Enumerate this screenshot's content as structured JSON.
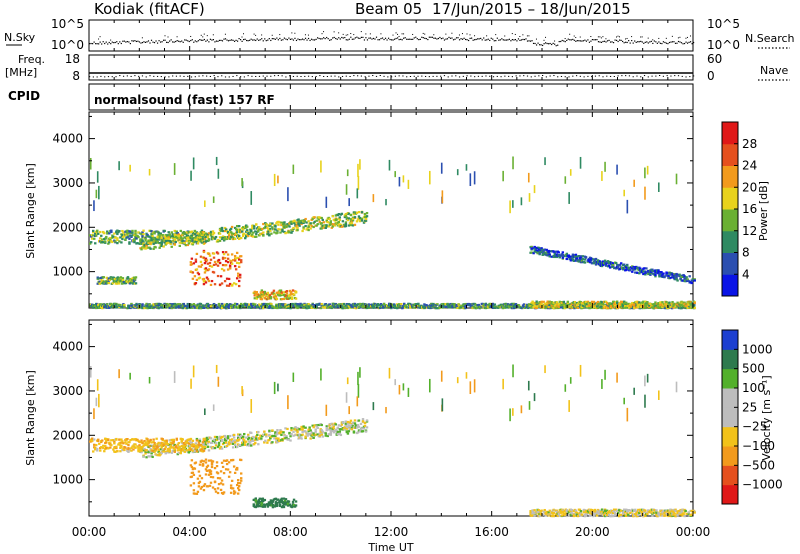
{
  "header": {
    "station": "Kodiak (fitACF)",
    "beam": "Beam 05",
    "date_range": "17/Jun/2015 – 18/Jun/2015"
  },
  "noise_panel": {
    "left_label": "N.Sky",
    "left_ticks": [
      "10^5",
      "10^0"
    ],
    "right_ticks": [
      "10^5",
      "10^0"
    ],
    "right_label": "N.Search"
  },
  "freq_panel": {
    "left_label_1": "Freq.",
    "left_label_2": "[MHz]",
    "left_ticks": [
      "18",
      "8"
    ],
    "right_ticks": [
      "60",
      "0"
    ],
    "right_label": "Nave"
  },
  "cpid": {
    "label": "CPID",
    "mode_text": "normalsound (fast) 157 RF"
  },
  "x_axis": {
    "label": "Time UT",
    "ticks": [
      "00:00",
      "04:00",
      "08:00",
      "12:00",
      "16:00",
      "20:00",
      "00:00"
    ]
  },
  "chart_data": [
    {
      "type": "heatmap",
      "title": "",
      "xlabel": "Time UT",
      "ylabel": "Slant Range [km]",
      "x_ticks": [
        "00:00",
        "04:00",
        "08:00",
        "12:00",
        "16:00",
        "20:00",
        "00:00"
      ],
      "x_range_hours": [
        0,
        24
      ],
      "ylim": [
        180,
        4600
      ],
      "y_ticks": [
        1000,
        2000,
        3000,
        4000
      ],
      "colorbar": {
        "label": "Power [dB]",
        "ticks": [
          "4",
          "8",
          "12",
          "16",
          "20",
          "24",
          "28"
        ],
        "range": [
          0,
          30
        ],
        "colors": [
          "#0a14e6",
          "#2b4fb0",
          "#2f8a62",
          "#6ab033",
          "#e8d21c",
          "#f29a1c",
          "#e5501e",
          "#e01818"
        ]
      },
      "features": [
        {
          "name": "near-range band",
          "t_start": 0.0,
          "t_end": 24.0,
          "range_km": [
            200,
            300
          ],
          "value": 10
        },
        {
          "name": "evening band",
          "t_start": 0.0,
          "t_end": 4.5,
          "range_km": [
            1650,
            1950
          ],
          "value": 12
        },
        {
          "name": "main arc",
          "t_start": 2.0,
          "t_end": 11.0,
          "range_km_start": [
            1500,
            1800
          ],
          "range_km_end": [
            2100,
            2400
          ],
          "value": 14
        },
        {
          "name": "strong echo",
          "t_start": 4.0,
          "t_end": 6.0,
          "range_km": [
            700,
            1500
          ],
          "value": 22
        },
        {
          "name": "close echoes",
          "t_start": 0.3,
          "t_end": 1.8,
          "range_km": [
            750,
            900
          ],
          "value": 12
        },
        {
          "name": "mid-range patch",
          "t_start": 6.5,
          "t_end": 8.2,
          "range_km": [
            400,
            600
          ],
          "value": 18
        },
        {
          "name": "morning band",
          "t_start": 17.5,
          "t_end": 24.0,
          "range_km_start": [
            1450,
            1600
          ],
          "range_km_end": [
            750,
            900
          ],
          "value": 6
        },
        {
          "name": "ground scatter",
          "t_start": 17.5,
          "t_end": 24.0,
          "range_km": [
            200,
            350
          ],
          "value": 16
        }
      ]
    },
    {
      "type": "heatmap",
      "title": "",
      "xlabel": "Time UT",
      "ylabel": "Slant Range [km]",
      "x_ticks": [
        "00:00",
        "04:00",
        "08:00",
        "12:00",
        "16:00",
        "20:00",
        "00:00"
      ],
      "x_range_hours": [
        0,
        24
      ],
      "ylim": [
        180,
        4600
      ],
      "y_ticks": [
        1000,
        2000,
        3000,
        4000
      ],
      "colorbar": {
        "label": "Velocity [m s⁻¹]",
        "ticks": [
          "1000",
          "500",
          "100",
          "25",
          "−25",
          "−100",
          "−500",
          "−1000"
        ],
        "colors": [
          "#1c3fd0",
          "#2e7a4e",
          "#53b02b",
          "#bdbdbd",
          "#bdbdbd",
          "#f2c21a",
          "#f29a1c",
          "#e5501e",
          "#e01818"
        ]
      },
      "features": [
        {
          "name": "main arc",
          "t_start": 2.0,
          "t_end": 11.0,
          "value": 0
        },
        {
          "name": "evening band",
          "t_start": 0.0,
          "t_end": 4.5,
          "value": -80
        },
        {
          "name": "strong echo",
          "t_start": 4.0,
          "t_end": 6.0,
          "value": -300
        },
        {
          "name": "mid-range patch",
          "t_start": 6.5,
          "t_end": 8.2,
          "value": 150
        },
        {
          "name": "ground scatter",
          "t_start": 17.5,
          "t_end": 24.0,
          "value": -20
        }
      ]
    }
  ]
}
